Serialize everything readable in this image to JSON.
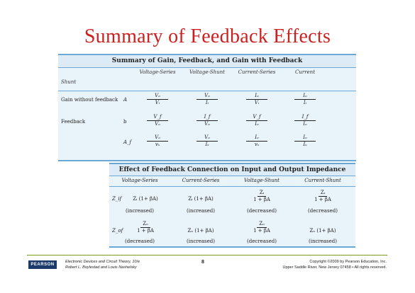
{
  "slide": {
    "title": "Summary of Feedback Effects"
  },
  "table1": {
    "caption": "Summary of Gain, Feedback, and Gain with Feedback",
    "headers": [
      "Voltage-Series",
      "Voltage-Shunt",
      "Current-Series",
      "Current"
    ],
    "shunt_label": "Shunt",
    "rows": [
      {
        "label": "Gain without feedback",
        "symbol": "A",
        "cells": [
          {
            "n": "Vₒ",
            "d": "Vᵢ"
          },
          {
            "n": "Vₒ",
            "d": "Iᵢ"
          },
          {
            "n": "Iₒ",
            "d": "Vᵢ"
          },
          {
            "n": "Iₒ",
            "d": "Iᵢ"
          }
        ]
      },
      {
        "label": "Feedback",
        "symbol": "b",
        "cells": [
          {
            "n": "V_f",
            "d": "Vₒ"
          },
          {
            "n": "I_f",
            "d": "Vₒ"
          },
          {
            "n": "V_f",
            "d": "Iₒ"
          },
          {
            "n": "I_f",
            "d": "Iₒ"
          }
        ]
      },
      {
        "label": "",
        "symbol": "A_f",
        "cells": [
          {
            "n": "Vₒ",
            "d": "vₛ"
          },
          {
            "n": "Vₒ",
            "d": "Iₛ"
          },
          {
            "n": "Iₒ",
            "d": "vₛ"
          },
          {
            "n": "Iₒ",
            "d": "Iₛ"
          }
        ]
      }
    ]
  },
  "table2": {
    "caption": "Effect of Feedback Connection on Input and Output Impedance",
    "headers": [
      "Voltage-Series",
      "Current-Series",
      "Voltage-Shunt",
      "Current-Shunt"
    ],
    "row1": {
      "label": "Z_if",
      "vs": "Zᵢ (1+ βA)",
      "cs": "Zᵢ (1+ βA)",
      "vsh_num": "Zᵢ",
      "vsh_den": "1 + βA",
      "csh_num": "Zᵢ",
      "csh_den": "1 + βA",
      "notes": [
        "(increased)",
        "(increased)",
        "(decreased)",
        "(decreased)"
      ]
    },
    "row2": {
      "label": "Z_of",
      "vs_num": "Zₒ",
      "vs_den": "1 + βA",
      "cs": "Zₒ (1+ βA)",
      "vsh_num": "Zₒ",
      "vsh_den": "1 + βA",
      "csh": "Zₒ (1+ βA)",
      "notes": [
        "(decreased)",
        "(increased)",
        "(decreased)",
        "(increased)"
      ]
    }
  },
  "footer": {
    "logo": "PEARSON",
    "book": "Electronic Devices and Circuit Theory, 10/e",
    "authors": "Robert L. Boylestad and Louis Nashelsky",
    "page": "8",
    "copyright": "Copyright ©2009 by Pearson Education, Inc.",
    "address": "Upper Saddle River, New Jersey 07458 • All rights reserved."
  }
}
